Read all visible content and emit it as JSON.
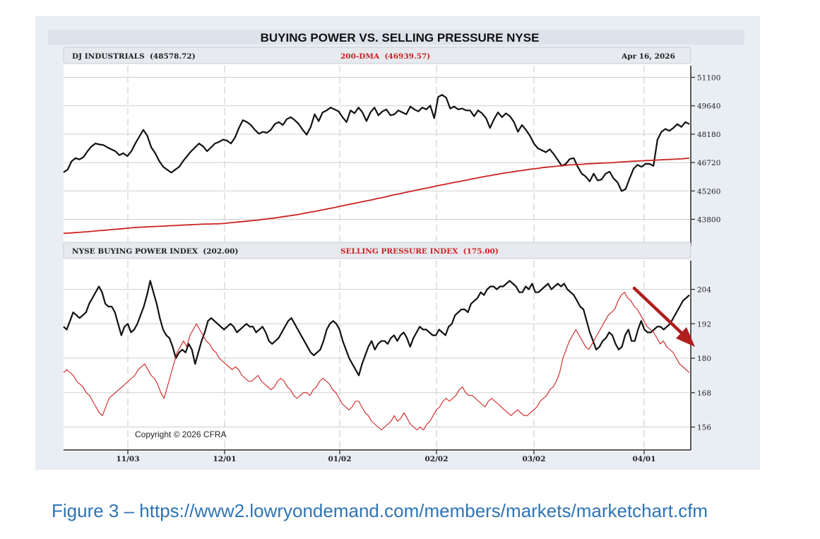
{
  "chart_data": {
    "type": "line",
    "title": "BUYING POWER VS. SELLING PRESSURE NYSE",
    "x_tick_labels": [
      "11/03",
      "12/01",
      "01/02",
      "02/02",
      "03/02",
      "04/01"
    ],
    "copyright": "Copyright © 2026 CFRA",
    "panels": [
      {
        "name": "dj-panel",
        "header": {
          "left": "DJ INDUSTRIALS  (48578.72)",
          "center": "200-DMA  (46939.57)",
          "right": "Apr 16, 2026"
        },
        "ylim": [
          42400,
          51700
        ],
        "yticks": [
          51100,
          49640,
          48180,
          46720,
          45260,
          43800
        ],
        "ytick_labels": [
          "51100",
          "49640",
          "48180",
          "46720",
          "45260",
          "43800"
        ],
        "series": [
          {
            "name": "DJ INDUSTRIALS",
            "color": "#111111",
            "values": [
              46220,
              46350,
              46780,
              46950,
              46880,
              47000,
              47300,
              47550,
              47700,
              47650,
              47620,
              47500,
              47400,
              47300,
              47100,
              47200,
              47050,
              47300,
              47700,
              48050,
              48400,
              48100,
              47500,
              47200,
              46800,
              46500,
              46350,
              46200,
              46350,
              46500,
              46800,
              47050,
              47300,
              47500,
              47700,
              47550,
              47300,
              47500,
              47700,
              47780,
              47900,
              47850,
              47700,
              48000,
              48500,
              48900,
              48800,
              48650,
              48400,
              48200,
              48300,
              48250,
              48400,
              48700,
              48800,
              48650,
              48950,
              49050,
              48900,
              48700,
              48400,
              48150,
              48550,
              49200,
              48850,
              49300,
              49400,
              49550,
              49450,
              49350,
              49050,
              48800,
              49400,
              49250,
              49550,
              49300,
              48850,
              49300,
              49550,
              49150,
              49350,
              49450,
              49150,
              49200,
              49400,
              49300,
              49200,
              49600,
              49450,
              49350,
              49550,
              49450,
              49650,
              49000,
              50100,
              50200,
              50050,
              49500,
              49600,
              49450,
              49500,
              49400,
              49400,
              49100,
              49400,
              49250,
              49000,
              48500,
              48950,
              49300,
              49050,
              49250,
              49100,
              48800,
              48300,
              48650,
              48400,
              48100,
              47700,
              47450,
              47350,
              47250,
              47400,
              47150,
              46850,
              46550,
              46650,
              46900,
              46950,
              46500,
              46150,
              46000,
              45750,
              46150,
              45800,
              45850,
              46150,
              46250,
              45900,
              45700,
              45250,
              45350,
              45900,
              46400,
              46600,
              46500,
              46650,
              46650,
              46550,
              47900,
              48300,
              48450,
              48350,
              48500,
              48700,
              48550,
              48800,
              48700
            ]
          },
          {
            "name": "200-DMA",
            "color": "#cc2222",
            "values": [
              43080,
              43090,
              43100,
              43120,
              43130,
              43150,
              43160,
              43180,
              43200,
              43220,
              43230,
              43250,
              43270,
              43290,
              43300,
              43320,
              43340,
              43360,
              43380,
              43390,
              43400,
              43410,
              43420,
              43430,
              43440,
              43450,
              43460,
              43470,
              43480,
              43490,
              43500,
              43510,
              43520,
              43530,
              43540,
              43550,
              43555,
              43560,
              43565,
              43570,
              43580,
              43600,
              43620,
              43640,
              43660,
              43680,
              43700,
              43720,
              43740,
              43760,
              43790,
              43810,
              43840,
              43860,
              43890,
              43920,
              43950,
              43980,
              44010,
              44040,
              44080,
              44120,
              44160,
              44190,
              44230,
              44270,
              44310,
              44350,
              44390,
              44430,
              44480,
              44520,
              44560,
              44600,
              44640,
              44690,
              44730,
              44770,
              44810,
              44860,
              44900,
              44940,
              44990,
              45040,
              45080,
              45120,
              45170,
              45210,
              45250,
              45300,
              45340,
              45380,
              45420,
              45460,
              45510,
              45550,
              45590,
              45630,
              45670,
              45710,
              45750,
              45790,
              45830,
              45870,
              45910,
              45950,
              45990,
              46030,
              46060,
              46100,
              46130,
              46170,
              46200,
              46230,
              46260,
              46290,
              46320,
              46350,
              46380,
              46400,
              46430,
              46460,
              46480,
              46500,
              46520,
              46540,
              46560,
              46580,
              46600,
              46610,
              46620,
              46630,
              46650,
              46660,
              46670,
              46680,
              46690,
              46700,
              46710,
              46720,
              46740,
              46750,
              46760,
              46780,
              46790,
              46800,
              46810,
              46820,
              46830,
              46840,
              46850,
              46860,
              46870,
              46880,
              46890,
              46900,
              46910,
              46930,
              46940
            ]
          }
        ]
      },
      {
        "name": "breadth-panel",
        "header": {
          "left": "NYSE BUYING POWER INDEX  (202.00)",
          "center": "SELLING PRESSURE INDEX  (175.00)"
        },
        "ylim": [
          148,
          214
        ],
        "yticks": [
          204,
          192,
          180,
          168,
          156
        ],
        "ytick_labels": [
          "204",
          "192",
          "180",
          "168",
          "156"
        ],
        "series": [
          {
            "name": "NYSE BUYING POWER INDEX",
            "color": "#111111",
            "values": [
              191,
              190,
              193,
              196,
              195,
              194,
              195,
              196,
              199,
              201,
              203,
              205,
              203,
              199,
              198,
              198,
              196,
              192,
              188,
              191,
              192,
              189,
              190,
              192,
              195,
              198,
              202,
              207,
              203,
              199,
              194,
              190,
              188,
              187,
              184,
              180,
              182,
              183,
              182,
              185,
              183,
              178,
              182,
              186,
              189,
              193,
              194,
              193,
              192,
              191,
              190,
              191,
              192,
              191,
              189,
              190,
              191,
              192,
              191,
              191,
              189,
              190,
              191,
              189,
              186,
              185,
              186,
              187,
              189,
              191,
              193,
              194,
              192,
              190,
              188,
              186,
              184,
              182,
              181,
              182,
              183,
              186,
              190,
              192,
              193,
              192,
              190,
              186,
              183,
              180,
              178,
              176,
              174,
              178,
              181,
              184,
              186,
              183,
              185,
              186,
              186,
              185,
              187,
              188,
              186,
              188,
              189,
              187,
              184,
              187,
              189,
              191,
              190,
              190,
              189,
              188,
              188,
              190,
              189,
              188,
              191,
              192,
              195,
              196,
              197,
              197,
              196,
              199,
              200,
              201,
              203,
              202,
              204,
              205,
              205,
              204,
              205,
              205,
              206,
              207,
              206,
              205,
              203,
              203,
              205,
              204,
              206,
              203,
              203,
              204,
              205,
              206,
              204,
              205,
              206,
              205,
              206,
              204,
              203,
              202,
              200,
              198,
              197,
              193,
              189,
              186,
              183,
              184,
              186,
              187,
              189,
              188,
              185,
              183,
              184,
              188,
              190,
              186,
              186,
              190,
              193,
              190,
              189,
              189,
              190,
              191,
              191,
              190,
              191,
              192,
              194,
              196,
              198,
              200,
              201,
              202
            ]
          },
          {
            "name": "SELLING PRESSURE INDEX",
            "color": "#cc2222",
            "values": [
              175,
              176,
              175,
              174,
              172,
              171,
              170,
              168,
              167,
              165,
              163,
              161,
              160,
              163,
              166,
              167,
              168,
              169,
              170,
              171,
              172,
              173,
              174,
              176,
              177,
              178,
              176,
              174,
              173,
              171,
              168,
              166,
              170,
              174,
              178,
              182,
              184,
              186,
              184,
              188,
              190,
              192,
              190,
              188,
              186,
              185,
              183,
              182,
              180,
              179,
              178,
              177,
              176,
              177,
              176,
              174,
              173,
              172,
              172,
              173,
              174,
              172,
              171,
              170,
              169,
              170,
              172,
              173,
              172,
              170,
              169,
              167,
              166,
              167,
              168,
              168,
              167,
              169,
              170,
              172,
              173,
              172,
              171,
              169,
              168,
              166,
              164,
              163,
              162,
              163,
              165,
              165,
              163,
              161,
              160,
              158,
              157,
              156,
              155,
              156,
              157,
              158,
              160,
              158,
              159,
              161,
              159,
              157,
              156,
              155,
              156,
              155,
              157,
              158,
              160,
              162,
              163,
              165,
              166,
              165,
              166,
              167,
              169,
              170,
              168,
              167,
              167,
              166,
              165,
              164,
              163,
              165,
              166,
              165,
              164,
              163,
              162,
              161,
              160,
              161,
              162,
              161,
              160,
              160,
              161,
              162,
              163,
              165,
              166,
              167,
              169,
              170,
              172,
              175,
              180,
              183,
              186,
              188,
              190,
              188,
              186,
              184,
              183,
              185,
              187,
              189,
              191,
              193,
              195,
              196,
              197,
              200,
              202,
              203,
              201,
              200,
              198,
              197,
              195,
              193,
              191,
              190,
              189,
              187,
              185,
              186,
              184,
              183,
              182,
              180,
              178,
              177,
              176,
              175
            ]
          }
        ]
      }
    ]
  },
  "annotation": {
    "type": "red-trend-arrow",
    "color": "#b01e1e"
  },
  "caption": "Figure 3 – https://www2.lowryondemand.com/members/markets/marketchart.cfm"
}
